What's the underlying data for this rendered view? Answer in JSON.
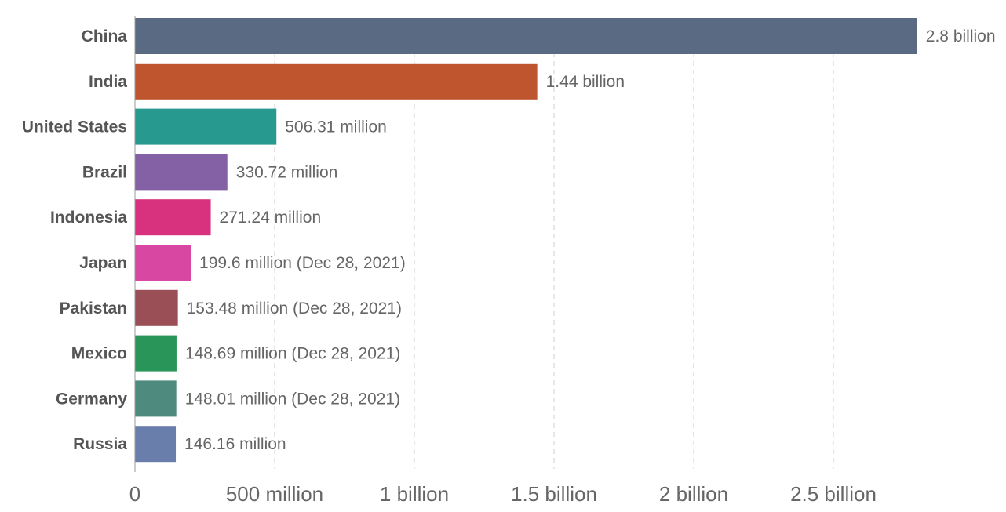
{
  "chart_data": {
    "type": "bar",
    "orientation": "horizontal",
    "title": "",
    "xlabel": "",
    "ylabel": "",
    "xlim": [
      0,
      2800000000
    ],
    "grid": true,
    "categories": [
      "China",
      "India",
      "United States",
      "Brazil",
      "Indonesia",
      "Japan",
      "Pakistan",
      "Mexico",
      "Germany",
      "Russia"
    ],
    "values": [
      2800000000,
      1440000000,
      506310000,
      330720000,
      271240000,
      199600000,
      153480000,
      148690000,
      148010000,
      146160000
    ],
    "value_labels": [
      "2.8 billion",
      "1.44 billion",
      "506.31 million",
      "330.72 million",
      "271.24 million",
      "199.6 million (Dec 28, 2021)",
      "153.48 million (Dec 28, 2021)",
      "148.69 million (Dec 28, 2021)",
      "148.01 million (Dec 28, 2021)",
      "146.16 million"
    ],
    "colors": [
      "#5a6a82",
      "#bf552f",
      "#27998f",
      "#8460a4",
      "#d8327f",
      "#d848a2",
      "#994f55",
      "#2a9558",
      "#4e8a7e",
      "#6a7eab"
    ],
    "x_ticks": [
      0,
      500000000,
      1000000000,
      1500000000,
      2000000000,
      2500000000
    ],
    "x_tick_labels": [
      "0",
      "500 million",
      "1 billion",
      "1.5 billion",
      "2 billion",
      "2.5 billion"
    ]
  }
}
